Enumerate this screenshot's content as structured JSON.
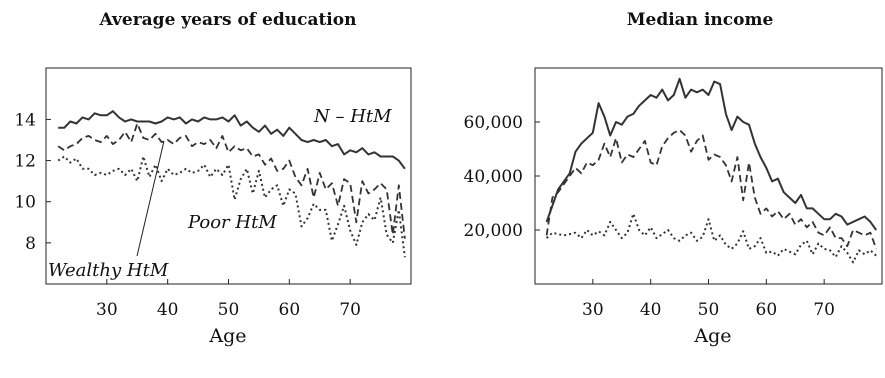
{
  "chart_data": [
    {
      "type": "line",
      "title": "Average years of education",
      "xlabel": "Age",
      "ylabel": "",
      "xlim": [
        20,
        80
      ],
      "ylim": [
        6,
        16.5
      ],
      "xticks": [
        30,
        40,
        50,
        60,
        70
      ],
      "yticks": [
        8,
        10,
        12,
        14
      ],
      "xtick_labels": [
        "30",
        "40",
        "50",
        "60",
        "70"
      ],
      "ytick_labels": [
        "8",
        "10",
        "12",
        "14"
      ],
      "grid": false,
      "annotations": [
        {
          "text": "N – HtM",
          "series": "N – HtM"
        },
        {
          "text": "Poor HtM",
          "series": "Poor HtM"
        },
        {
          "text": "Wealthy HtM",
          "series": "Wealthy HtM",
          "arrow": true
        }
      ],
      "series": [
        {
          "name": "N – HtM",
          "style": "solid",
          "x": [
            22,
            23,
            24,
            25,
            26,
            27,
            28,
            29,
            30,
            31,
            32,
            33,
            34,
            35,
            36,
            37,
            38,
            39,
            40,
            41,
            42,
            43,
            44,
            45,
            46,
            47,
            48,
            49,
            50,
            51,
            52,
            53,
            54,
            55,
            56,
            57,
            58,
            59,
            60,
            61,
            62,
            63,
            64,
            65,
            66,
            67,
            68,
            69,
            70,
            71,
            72,
            73,
            74,
            75,
            76,
            77,
            78,
            79
          ],
          "values": [
            13.6,
            13.6,
            13.9,
            13.8,
            14.1,
            14.0,
            14.3,
            14.2,
            14.2,
            14.4,
            14.1,
            13.9,
            14.0,
            13.9,
            13.9,
            13.9,
            13.8,
            13.9,
            14.1,
            14.0,
            14.1,
            13.8,
            14.0,
            13.9,
            14.1,
            14.0,
            14.0,
            14.1,
            13.9,
            14.2,
            13.7,
            13.9,
            13.6,
            13.4,
            13.7,
            13.3,
            13.5,
            13.2,
            13.6,
            13.3,
            13.0,
            12.9,
            13.0,
            12.9,
            13.0,
            12.7,
            12.8,
            12.3,
            12.5,
            12.4,
            12.6,
            12.3,
            12.4,
            12.2,
            12.2,
            12.2,
            12.0,
            11.6
          ]
        },
        {
          "name": "Poor HtM",
          "style": "dashed",
          "x": [
            22,
            23,
            24,
            25,
            26,
            27,
            28,
            29,
            30,
            31,
            32,
            33,
            34,
            35,
            36,
            37,
            38,
            39,
            40,
            41,
            42,
            43,
            44,
            45,
            46,
            47,
            48,
            49,
            50,
            51,
            52,
            53,
            54,
            55,
            56,
            57,
            58,
            59,
            60,
            61,
            62,
            63,
            64,
            65,
            66,
            67,
            68,
            69,
            70,
            71,
            72,
            73,
            74,
            75,
            76,
            77,
            78,
            79
          ],
          "values": [
            12.7,
            12.5,
            12.7,
            12.8,
            13.1,
            13.2,
            13.0,
            12.9,
            13.2,
            12.8,
            13.0,
            13.4,
            12.9,
            13.8,
            13.1,
            13.0,
            13.3,
            12.9,
            13.0,
            12.8,
            13.1,
            13.2,
            12.7,
            12.9,
            12.8,
            13.0,
            12.6,
            13.2,
            12.4,
            12.7,
            12.5,
            12.6,
            12.2,
            12.3,
            11.8,
            12.1,
            11.5,
            11.6,
            12.0,
            11.2,
            10.8,
            11.6,
            10.2,
            11.4,
            10.6,
            10.9,
            9.8,
            11.1,
            10.9,
            9.0,
            11.0,
            10.4,
            10.6,
            10.9,
            10.6,
            8.4,
            10.8,
            8.2
          ]
        },
        {
          "name": "Wealthy HtM",
          "style": "dotted",
          "x": [
            22,
            23,
            24,
            25,
            26,
            27,
            28,
            29,
            30,
            31,
            32,
            33,
            34,
            35,
            36,
            37,
            38,
            39,
            40,
            41,
            42,
            43,
            44,
            45,
            46,
            47,
            48,
            49,
            50,
            51,
            52,
            53,
            54,
            55,
            56,
            57,
            58,
            59,
            60,
            61,
            62,
            63,
            64,
            65,
            66,
            67,
            68,
            69,
            70,
            71,
            72,
            73,
            74,
            75,
            76,
            77,
            78,
            79
          ],
          "values": [
            12.0,
            12.2,
            11.9,
            12.1,
            11.6,
            11.6,
            11.3,
            11.4,
            11.3,
            11.5,
            11.6,
            11.3,
            11.6,
            11.0,
            12.2,
            11.2,
            11.8,
            11.0,
            11.6,
            11.3,
            11.4,
            11.6,
            11.4,
            11.5,
            11.8,
            11.2,
            11.6,
            11.3,
            11.8,
            10.1,
            11.1,
            11.6,
            10.4,
            11.5,
            10.2,
            10.6,
            10.8,
            9.8,
            10.6,
            10.4,
            8.8,
            9.2,
            9.9,
            9.6,
            9.6,
            8.1,
            8.9,
            9.8,
            8.6,
            7.9,
            9.0,
            9.4,
            9.1,
            10.2,
            8.4,
            8.0,
            9.6,
            7.3
          ]
        }
      ]
    },
    {
      "type": "line",
      "title": "Median income",
      "xlabel": "Age",
      "ylabel": "",
      "xlim": [
        20,
        80
      ],
      "ylim": [
        0,
        80000
      ],
      "xticks": [
        30,
        40,
        50,
        60,
        70
      ],
      "yticks": [
        20000,
        40000,
        60000
      ],
      "xtick_labels": [
        "30",
        "40",
        "50",
        "60",
        "70"
      ],
      "ytick_labels": [
        "20,000",
        "40,000",
        "60,000"
      ],
      "grid": false,
      "series": [
        {
          "style": "solid",
          "x": [
            22,
            23,
            24,
            25,
            26,
            27,
            28,
            29,
            30,
            31,
            32,
            33,
            34,
            35,
            36,
            37,
            38,
            39,
            40,
            41,
            42,
            43,
            44,
            45,
            46,
            47,
            48,
            49,
            50,
            51,
            52,
            53,
            54,
            55,
            56,
            57,
            58,
            59,
            60,
            61,
            62,
            63,
            64,
            65,
            66,
            67,
            68,
            69,
            70,
            71,
            72,
            73,
            74,
            75,
            76,
            77,
            78,
            79
          ],
          "values": [
            23000,
            29000,
            35000,
            38000,
            41000,
            49000,
            52000,
            54000,
            56000,
            67000,
            62000,
            55000,
            60000,
            59000,
            62000,
            63000,
            66000,
            68000,
            70000,
            69000,
            72000,
            68000,
            70000,
            76000,
            69000,
            72000,
            71000,
            72000,
            70000,
            75000,
            74000,
            63000,
            57000,
            62000,
            60000,
            59000,
            52000,
            47000,
            43000,
            38000,
            39000,
            34000,
            32000,
            30000,
            33000,
            28000,
            28000,
            26000,
            24000,
            24000,
            26000,
            25000,
            22000,
            23000,
            24000,
            25000,
            23000,
            20000
          ]
        },
        {
          "style": "dashed",
          "x": [
            22,
            23,
            24,
            25,
            26,
            27,
            28,
            29,
            30,
            31,
            32,
            33,
            34,
            35,
            36,
            37,
            38,
            39,
            40,
            41,
            42,
            43,
            44,
            45,
            46,
            47,
            48,
            49,
            50,
            51,
            52,
            53,
            54,
            55,
            56,
            57,
            58,
            59,
            60,
            61,
            62,
            63,
            64,
            65,
            66,
            67,
            68,
            69,
            70,
            71,
            72,
            73,
            74,
            75,
            76,
            77,
            78,
            79
          ],
          "values": [
            18000,
            32000,
            34000,
            37000,
            40000,
            43000,
            41000,
            45000,
            44000,
            46000,
            52000,
            47000,
            54000,
            45000,
            48000,
            47000,
            50000,
            53000,
            45000,
            44000,
            51000,
            54000,
            56000,
            57000,
            55000,
            49000,
            53000,
            55000,
            46000,
            48000,
            47000,
            44000,
            38000,
            47000,
            31000,
            45000,
            32000,
            26000,
            28000,
            25000,
            27000,
            24000,
            26000,
            22000,
            24000,
            21000,
            23000,
            19000,
            18000,
            21000,
            17000,
            17000,
            14000,
            20000,
            19000,
            18000,
            19000,
            13000
          ]
        },
        {
          "style": "dotted",
          "x": [
            22,
            23,
            24,
            25,
            26,
            27,
            28,
            29,
            30,
            31,
            32,
            33,
            34,
            35,
            36,
            37,
            38,
            39,
            40,
            41,
            42,
            43,
            44,
            45,
            46,
            47,
            48,
            49,
            50,
            51,
            52,
            53,
            54,
            55,
            56,
            57,
            58,
            59,
            60,
            61,
            62,
            63,
            64,
            65,
            66,
            67,
            68,
            69,
            70,
            71,
            72,
            73,
            74,
            75,
            76,
            77,
            78,
            79
          ],
          "values": [
            17000,
            19000,
            18500,
            18000,
            18500,
            19000,
            17000,
            20000,
            18000,
            19500,
            18000,
            23000,
            20000,
            17000,
            19000,
            26000,
            20000,
            18000,
            21000,
            17000,
            18500,
            20000,
            17000,
            16000,
            18000,
            19000,
            16000,
            17500,
            24000,
            16000,
            18000,
            14500,
            13000,
            15000,
            19500,
            13000,
            14000,
            17000,
            11500,
            12000,
            10500,
            13000,
            12000,
            11000,
            14500,
            16000,
            11000,
            15000,
            13000,
            12500,
            10000,
            14000,
            11500,
            8000,
            12500,
            11000,
            12500,
            10500
          ]
        }
      ]
    }
  ]
}
